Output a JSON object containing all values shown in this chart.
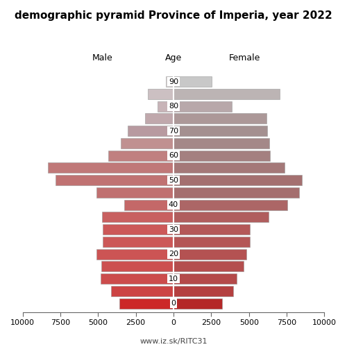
{
  "title": "demographic pyramid Province of Imperia, year 2022",
  "header_left": "Male",
  "header_right": "Female",
  "header_center": "Age",
  "footer": "www.iz.sk/RITC31",
  "age_groups": [
    90,
    85,
    80,
    75,
    70,
    65,
    60,
    55,
    50,
    45,
    40,
    35,
    30,
    25,
    20,
    15,
    10,
    5,
    0
  ],
  "male_values": [
    520,
    1700,
    1050,
    1900,
    3050,
    3500,
    4300,
    8300,
    7800,
    5100,
    3250,
    4750,
    4700,
    4700,
    5100,
    4800,
    4850,
    4150,
    3600
  ],
  "female_values": [
    2550,
    7050,
    3850,
    6150,
    6200,
    6350,
    6400,
    7350,
    8500,
    8300,
    7550,
    6300,
    5050,
    5050,
    4850,
    4650,
    4200,
    3950,
    3200
  ],
  "male_colors": [
    "#d4d0d0",
    "#ccc0c2",
    "#c8b4b8",
    "#c0a8ac",
    "#b89aa0",
    "#c09090",
    "#c08080",
    "#c07878",
    "#c07272",
    "#c07070",
    "#c46868",
    "#c86060",
    "#cc5858",
    "#cc5858",
    "#cc5454",
    "#cc5050",
    "#cc4c4c",
    "#cc4444",
    "#cc2828"
  ],
  "female_colors": [
    "#c8c8c8",
    "#bcb4b4",
    "#b8a8aa",
    "#ac9898",
    "#a49090",
    "#a48888",
    "#a48080",
    "#a47878",
    "#a47070",
    "#a46e6e",
    "#ac6666",
    "#b05e5e",
    "#b45858",
    "#b45656",
    "#b45252",
    "#b44e4e",
    "#b44a4a",
    "#b44040",
    "#b42828"
  ],
  "xlim": 10000,
  "bar_height": 4.2,
  "ylim_bottom": -3.5,
  "ylim_top": 94,
  "background_color": "#ffffff",
  "xticks": [
    -10000,
    -7500,
    -5000,
    -2500,
    0,
    2500,
    5000,
    7500,
    10000
  ],
  "xticklabels": [
    "10000",
    "7500",
    "5000",
    "2500",
    "0",
    "2500",
    "5000",
    "7500",
    "10000"
  ],
  "ytick_ages": [
    0,
    10,
    20,
    30,
    40,
    50,
    60,
    70,
    80,
    90
  ],
  "title_fontsize": 11,
  "header_fontsize": 9,
  "tick_fontsize": 8,
  "footer_fontsize": 8
}
